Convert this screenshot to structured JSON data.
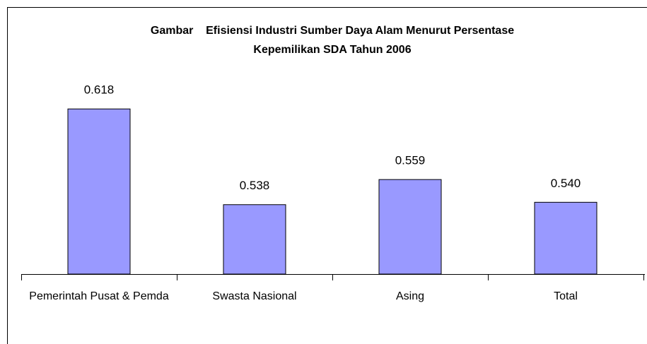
{
  "chart_data": {
    "type": "bar",
    "title": [
      "Gambar    Efisiensi Industri Sumber Daya Alam Menurut Persentase",
      "Kepemilikan SDA Tahun 2006"
    ],
    "categories": [
      "Pemerintah Pusat & Pemda",
      "Swasta Nasional",
      "Asing",
      "Total"
    ],
    "values": [
      0.618,
      0.538,
      0.559,
      0.54
    ],
    "value_labels": [
      "0.618",
      "0.538",
      "0.559",
      "0.540"
    ],
    "color": "#9999ff",
    "ylim": [
      0.48,
      0.65
    ]
  }
}
